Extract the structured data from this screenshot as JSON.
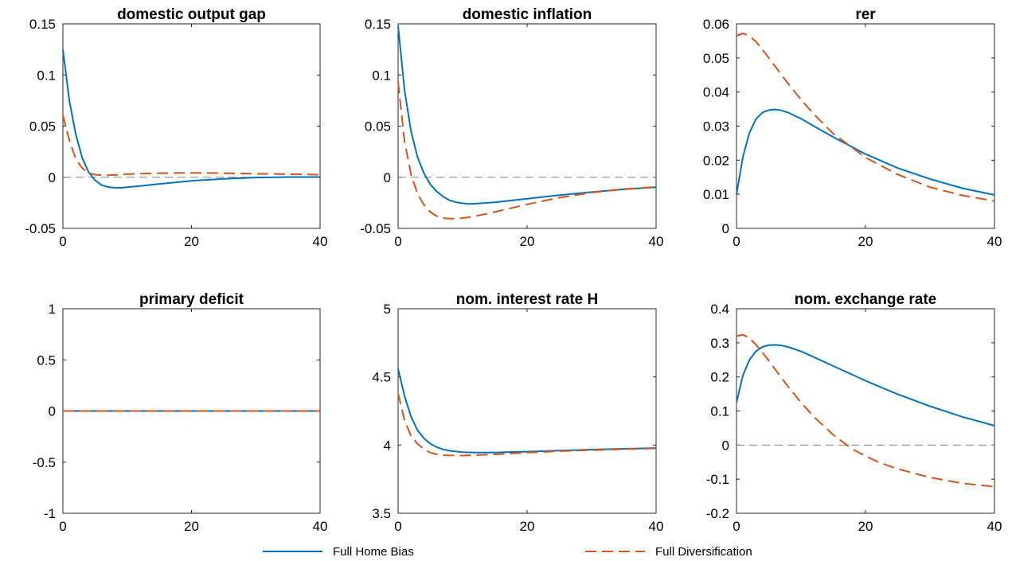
{
  "chart_data": [
    {
      "type": "line",
      "title": "domestic output gap",
      "xlim": [
        0,
        40
      ],
      "ylim": [
        -0.05,
        0.15
      ],
      "xticks": [
        "0",
        "20",
        "40"
      ],
      "yticks": [
        "0.15",
        "0.1",
        "0.05",
        "0",
        "-0.05"
      ],
      "zero_line": true,
      "series": [
        {
          "name": "Full Home Bias",
          "x": [
            0,
            1,
            2,
            3,
            4,
            5,
            6,
            7,
            8,
            9,
            10,
            12,
            15,
            20,
            25,
            30,
            35,
            40
          ],
          "values": [
            0.125,
            0.075,
            0.042,
            0.019,
            0.005,
            -0.003,
            -0.0075,
            -0.0095,
            -0.0102,
            -0.0103,
            -0.0098,
            -0.0085,
            -0.0065,
            -0.0035,
            -0.0015,
            -0.0003,
            0.0002,
            0.0002
          ]
        },
        {
          "name": "Full Diversification",
          "x": [
            0,
            1,
            2,
            3,
            4,
            5,
            6,
            7,
            8,
            9,
            10,
            12,
            15,
            20,
            25,
            30,
            35,
            40
          ],
          "values": [
            0.061,
            0.036,
            0.018,
            0.009,
            0.004,
            0.0025,
            0.002,
            0.002,
            0.0022,
            0.0025,
            0.003,
            0.0035,
            0.004,
            0.0043,
            0.004,
            0.0035,
            0.003,
            0.0025
          ]
        }
      ]
    },
    {
      "type": "line",
      "title": "domestic inflation",
      "xlim": [
        0,
        40
      ],
      "ylim": [
        -0.05,
        0.15
      ],
      "xticks": [
        "0",
        "20",
        "40"
      ],
      "yticks": [
        "0.15",
        "0.1",
        "0.05",
        "0",
        "-0.05"
      ],
      "zero_line": true,
      "series": [
        {
          "name": "Full Home Bias",
          "x": [
            0,
            1,
            2,
            3,
            4,
            5,
            6,
            7,
            8,
            9,
            10,
            11,
            12,
            15,
            20,
            25,
            30,
            35,
            40
          ],
          "values": [
            0.148,
            0.085,
            0.045,
            0.02,
            0.004,
            -0.007,
            -0.014,
            -0.019,
            -0.0225,
            -0.0245,
            -0.0255,
            -0.026,
            -0.0258,
            -0.0245,
            -0.021,
            -0.0175,
            -0.0145,
            -0.0118,
            -0.0098
          ]
        },
        {
          "name": "Full Diversification",
          "x": [
            0,
            1,
            2,
            3,
            4,
            5,
            6,
            7,
            8,
            9,
            10,
            12,
            15,
            20,
            25,
            30,
            35,
            40
          ],
          "values": [
            0.093,
            0.035,
            0.003,
            -0.016,
            -0.027,
            -0.034,
            -0.038,
            -0.04,
            -0.0405,
            -0.0405,
            -0.04,
            -0.038,
            -0.034,
            -0.0265,
            -0.02,
            -0.015,
            -0.0115,
            -0.0095
          ]
        }
      ]
    },
    {
      "type": "line",
      "title": "rer",
      "xlim": [
        0,
        40
      ],
      "ylim": [
        0,
        0.06
      ],
      "xticks": [
        "0",
        "20",
        "40"
      ],
      "yticks": [
        "0.06",
        "0.05",
        "0.04",
        "0.03",
        "0.02",
        "0.01",
        "0"
      ],
      "zero_line": false,
      "series": [
        {
          "name": "Full Home Bias",
          "x": [
            0,
            1,
            2,
            3,
            4,
            5,
            6,
            7,
            8,
            10,
            12,
            15,
            20,
            25,
            30,
            35,
            40
          ],
          "values": [
            0.01,
            0.021,
            0.028,
            0.032,
            0.034,
            0.0347,
            0.0349,
            0.0346,
            0.034,
            0.0322,
            0.03,
            0.0268,
            0.0218,
            0.0177,
            0.0145,
            0.0118,
            0.0098
          ]
        },
        {
          "name": "Full Diversification",
          "x": [
            0,
            1,
            2,
            3,
            4,
            5,
            6,
            8,
            10,
            12,
            15,
            20,
            25,
            30,
            35,
            40
          ],
          "values": [
            0.0565,
            0.0572,
            0.0565,
            0.0548,
            0.0525,
            0.05,
            0.0475,
            0.0425,
            0.0378,
            0.0335,
            0.0278,
            0.0208,
            0.0158,
            0.0121,
            0.0097,
            0.008
          ]
        }
      ]
    },
    {
      "type": "line",
      "title": "primary deficit",
      "xlim": [
        0,
        40
      ],
      "ylim": [
        -1,
        1
      ],
      "xticks": [
        "0",
        "20",
        "40"
      ],
      "yticks": [
        "1",
        "0.5",
        "0",
        "-0.5",
        "-1"
      ],
      "zero_line": true,
      "series": [
        {
          "name": "Full Home Bias",
          "x": [
            0,
            40
          ],
          "values": [
            0,
            0
          ]
        },
        {
          "name": "Full Diversification",
          "x": [
            0,
            40
          ],
          "values": [
            0,
            0
          ]
        }
      ]
    },
    {
      "type": "line",
      "title": "nom. interest rate H",
      "xlim": [
        0,
        40
      ],
      "ylim": [
        3.5,
        5
      ],
      "xticks": [
        "0",
        "20",
        "40"
      ],
      "yticks": [
        "5",
        "4.5",
        "4",
        "3.5"
      ],
      "zero_line": false,
      "series": [
        {
          "name": "Full Home Bias",
          "x": [
            0,
            1,
            2,
            3,
            4,
            5,
            6,
            7,
            8,
            10,
            12,
            15,
            20,
            25,
            30,
            35,
            40
          ],
          "values": [
            4.56,
            4.36,
            4.21,
            4.11,
            4.05,
            4.01,
            3.985,
            3.968,
            3.958,
            3.948,
            3.945,
            3.946,
            3.952,
            3.96,
            3.967,
            3.973,
            3.978
          ]
        },
        {
          "name": "Full Diversification",
          "x": [
            0,
            1,
            2,
            3,
            4,
            5,
            6,
            7,
            8,
            10,
            12,
            15,
            20,
            25,
            30,
            35,
            40
          ],
          "values": [
            4.38,
            4.18,
            4.07,
            4.01,
            3.97,
            3.945,
            3.932,
            3.926,
            3.924,
            3.923,
            3.926,
            3.932,
            3.945,
            3.955,
            3.963,
            3.97,
            3.976
          ]
        }
      ]
    },
    {
      "type": "line",
      "title": "nom. exchange rate",
      "xlim": [
        0,
        40
      ],
      "ylim": [
        -0.2,
        0.4
      ],
      "xticks": [
        "0",
        "20",
        "40"
      ],
      "yticks": [
        "0.4",
        "0.3",
        "0.2",
        "0.1",
        "0",
        "-0.1",
        "-0.2"
      ],
      "zero_line": true,
      "series": [
        {
          "name": "Full Home Bias",
          "x": [
            0,
            1,
            2,
            3,
            4,
            5,
            6,
            7,
            8,
            10,
            12,
            15,
            20,
            25,
            30,
            35,
            40
          ],
          "values": [
            0.125,
            0.205,
            0.25,
            0.275,
            0.288,
            0.293,
            0.294,
            0.292,
            0.288,
            0.275,
            0.258,
            0.232,
            0.189,
            0.149,
            0.114,
            0.083,
            0.057
          ]
        },
        {
          "name": "Full Diversification",
          "x": [
            0,
            1,
            2,
            3,
            4,
            5,
            6,
            8,
            10,
            12,
            15,
            18,
            20,
            22,
            25,
            30,
            35,
            40
          ],
          "values": [
            0.32,
            0.324,
            0.314,
            0.295,
            0.272,
            0.248,
            0.222,
            0.172,
            0.125,
            0.083,
            0.03,
            -0.012,
            -0.032,
            -0.05,
            -0.07,
            -0.095,
            -0.112,
            -0.122
          ]
        }
      ]
    }
  ],
  "legend": {
    "items": [
      {
        "label": "Full Home Bias",
        "color": "#0072bd",
        "style": "solid"
      },
      {
        "label": "Full Diversification",
        "color": "#d95319",
        "style": "dashed"
      }
    ]
  },
  "colors": {
    "home_bias": "#0072bd",
    "diversification": "#d95319",
    "zero_line": "#808080"
  }
}
